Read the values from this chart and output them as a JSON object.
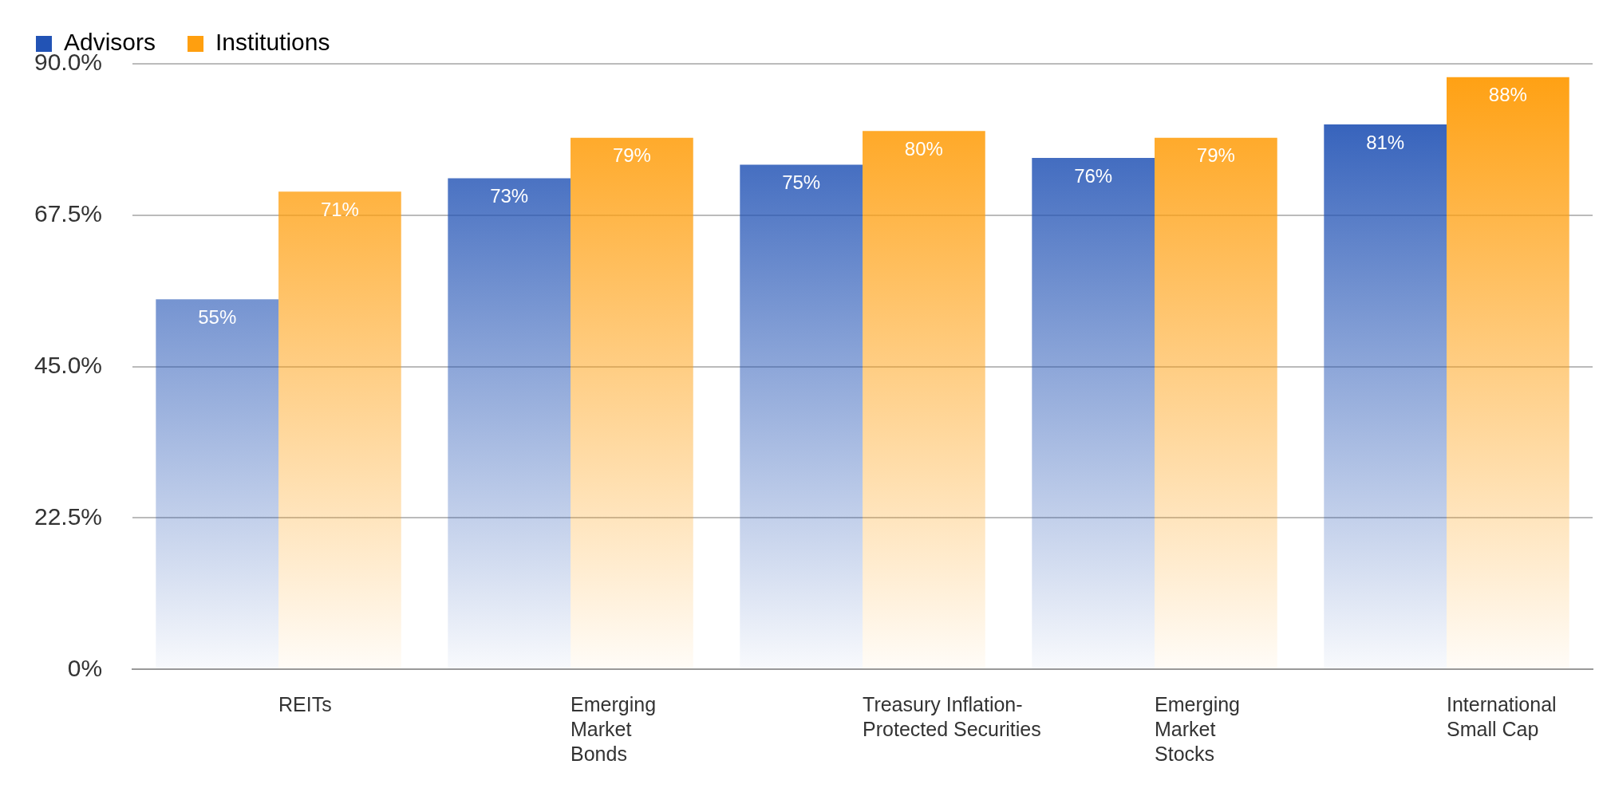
{
  "chart_data": {
    "type": "bar",
    "categories": [
      "REITs",
      "Emerging\nMarket\nBonds",
      "Treasury Inflation-\nProtected Securities",
      "Emerging\nMarket\nStocks",
      "International\nSmall Cap"
    ],
    "series": [
      {
        "name": "Advisors",
        "color": "#2253b5",
        "values": [
          55,
          73,
          75,
          76,
          81
        ]
      },
      {
        "name": "Institutions",
        "color": "#ff9f0f",
        "values": [
          71,
          79,
          80,
          79,
          88
        ]
      }
    ],
    "value_labels": [
      [
        "55%",
        "73%",
        "75%",
        "76%",
        "81%"
      ],
      [
        "71%",
        "79%",
        "80%",
        "79%",
        "88%"
      ]
    ],
    "ylim": [
      0,
      90
    ],
    "yticks": [
      {
        "value": 0,
        "label": "0%"
      },
      {
        "value": 22.5,
        "label": "22.5%"
      },
      {
        "value": 45,
        "label": "45.0%"
      },
      {
        "value": 67.5,
        "label": "67.5%"
      },
      {
        "value": 90,
        "label": "90.0%"
      }
    ],
    "grid": "y",
    "legend": "top left"
  }
}
